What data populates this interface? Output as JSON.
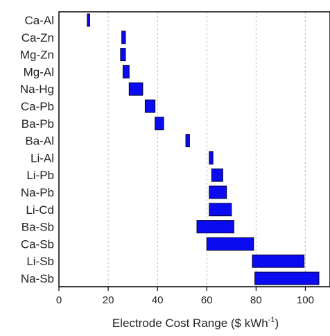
{
  "chart_data": {
    "type": "bar",
    "orientation": "horizontal-range",
    "title": "",
    "xlabel_main": "Electrode Cost Range ($ kWh",
    "xlabel_sup": "-1",
    "xlabel_end": ")",
    "ylabel": "",
    "xlim": [
      0,
      110
    ],
    "xticks": [
      0,
      20,
      40,
      60,
      80,
      100
    ],
    "grid": true,
    "categories": [
      "Ca-Al",
      "Ca-Zn",
      "Mg-Zn",
      "Mg-Al",
      "Na-Hg",
      "Ca-Pb",
      "Ba-Pb",
      "Ba-Al",
      "Li-Al",
      "Li-Pb",
      "Na-Pb",
      "Li-Cd",
      "Ba-Sb",
      "Ca-Sb",
      "Li-Sb",
      "Na-Sb"
    ],
    "series": [
      {
        "values_min": [
          11.5,
          25.5,
          25.0,
          26.0,
          28.5,
          35.0,
          39.0,
          51.5,
          61.0,
          62.0,
          61.0,
          61.0,
          56.0,
          60.0,
          78.5,
          79.5
        ],
        "values_max": [
          12.5,
          27.0,
          27.0,
          28.5,
          34.0,
          39.0,
          42.5,
          53.0,
          62.5,
          66.5,
          68.0,
          70.0,
          71.0,
          79.0,
          99.5,
          105.5
        ]
      }
    ],
    "colors": {
      "bar_fill": "#0b0bf2",
      "bar_stroke": "#000033",
      "grid": "#bbbbbb"
    }
  }
}
